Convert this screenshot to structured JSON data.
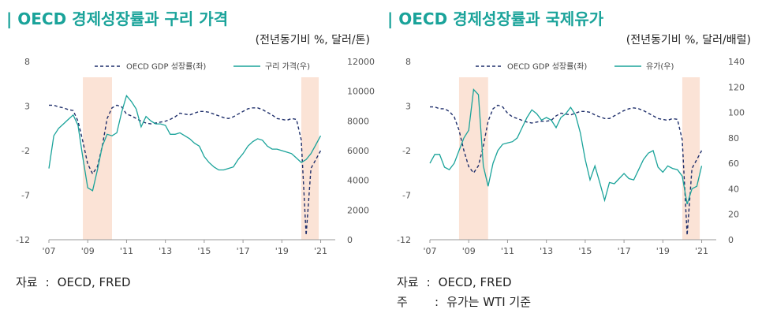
{
  "charts": [
    {
      "title": "| OECD 경제성장률과 구리 가격",
      "unit": "(전년동기비 %, 달러/톤)",
      "notes": [
        {
          "label": "자료",
          "text": "OECD, FRED"
        }
      ]
    },
    {
      "title": "| OECD 경제성장률과 국제유가",
      "unit": "(전년동기비 %, 달러/배럴)",
      "notes": [
        {
          "label": "자료",
          "text": "OECD, FRED"
        },
        {
          "label": "주",
          "text": "유가는 WTI 기준"
        }
      ]
    }
  ],
  "chart_data": [
    {
      "type": "line",
      "x_range": [
        2007,
        2021.75
      ],
      "x_ticks": [
        "'07",
        "'09",
        "'11",
        "'13",
        "'15",
        "'17",
        "'19",
        "'21"
      ],
      "y_left": {
        "range": [
          -12,
          8
        ],
        "ticks": [
          8,
          3,
          -2,
          -7,
          -12
        ]
      },
      "y_right": {
        "range": [
          0,
          12000
        ],
        "ticks": [
          12000,
          10000,
          8000,
          6000,
          4000,
          2000,
          0
        ]
      },
      "shaded_periods": [
        [
          2008.75,
          2010.25
        ],
        [
          2020.0,
          2020.9
        ]
      ],
      "series": [
        {
          "name": "OECD GDP 성장률(좌)",
          "axis": "left",
          "style": "dashed",
          "color": "#1f2f6b",
          "points": [
            [
              2007.0,
              3.1
            ],
            [
              2007.25,
              3.1
            ],
            [
              2007.5,
              2.9
            ],
            [
              2007.75,
              2.8
            ],
            [
              2008.0,
              2.6
            ],
            [
              2008.25,
              2.5
            ],
            [
              2008.5,
              1.3
            ],
            [
              2008.75,
              -1.0
            ],
            [
              2009.0,
              -3.5
            ],
            [
              2009.25,
              -4.6
            ],
            [
              2009.5,
              -3.8
            ],
            [
              2009.75,
              -1.5
            ],
            [
              2010.0,
              1.6
            ],
            [
              2010.25,
              2.8
            ],
            [
              2010.5,
              3.1
            ],
            [
              2010.75,
              2.9
            ],
            [
              2011.0,
              2.1
            ],
            [
              2011.25,
              1.9
            ],
            [
              2011.5,
              1.6
            ],
            [
              2011.75,
              1.3
            ],
            [
              2012.0,
              1.1
            ],
            [
              2012.25,
              1.0
            ],
            [
              2012.5,
              1.1
            ],
            [
              2012.75,
              1.2
            ],
            [
              2013.0,
              1.3
            ],
            [
              2013.25,
              1.5
            ],
            [
              2013.5,
              1.8
            ],
            [
              2013.75,
              2.2
            ],
            [
              2014.0,
              2.1
            ],
            [
              2014.25,
              2.0
            ],
            [
              2014.5,
              2.2
            ],
            [
              2014.75,
              2.4
            ],
            [
              2015.0,
              2.4
            ],
            [
              2015.25,
              2.3
            ],
            [
              2015.5,
              2.1
            ],
            [
              2015.75,
              1.9
            ],
            [
              2016.0,
              1.7
            ],
            [
              2016.25,
              1.6
            ],
            [
              2016.5,
              1.8
            ],
            [
              2016.75,
              2.1
            ],
            [
              2017.0,
              2.4
            ],
            [
              2017.25,
              2.7
            ],
            [
              2017.5,
              2.8
            ],
            [
              2017.75,
              2.8
            ],
            [
              2018.0,
              2.6
            ],
            [
              2018.25,
              2.3
            ],
            [
              2018.5,
              2.0
            ],
            [
              2018.75,
              1.6
            ],
            [
              2019.0,
              1.5
            ],
            [
              2019.25,
              1.4
            ],
            [
              2019.5,
              1.6
            ],
            [
              2019.75,
              1.5
            ],
            [
              2020.0,
              -0.8
            ],
            [
              2020.25,
              -11.5
            ],
            [
              2020.5,
              -4.0
            ],
            [
              2020.75,
              -3.0
            ],
            [
              2021.0,
              -2.0
            ]
          ]
        },
        {
          "name": "구리 가격(우)",
          "axis": "right",
          "style": "solid",
          "color": "#1aa39a",
          "points": [
            [
              2007.0,
              4800
            ],
            [
              2007.25,
              7000
            ],
            [
              2007.5,
              7500
            ],
            [
              2007.75,
              7800
            ],
            [
              2008.0,
              8100
            ],
            [
              2008.25,
              8400
            ],
            [
              2008.5,
              7700
            ],
            [
              2008.75,
              5500
            ],
            [
              2009.0,
              3500
            ],
            [
              2009.25,
              3300
            ],
            [
              2009.5,
              4700
            ],
            [
              2009.75,
              6300
            ],
            [
              2010.0,
              7100
            ],
            [
              2010.25,
              7000
            ],
            [
              2010.5,
              7200
            ],
            [
              2010.75,
              8600
            ],
            [
              2011.0,
              9700
            ],
            [
              2011.25,
              9300
            ],
            [
              2011.5,
              8800
            ],
            [
              2011.75,
              7600
            ],
            [
              2012.0,
              8300
            ],
            [
              2012.25,
              8000
            ],
            [
              2012.5,
              7800
            ],
            [
              2012.75,
              7800
            ],
            [
              2013.0,
              7700
            ],
            [
              2013.25,
              7100
            ],
            [
              2013.5,
              7100
            ],
            [
              2013.75,
              7200
            ],
            [
              2014.0,
              7000
            ],
            [
              2014.25,
              6800
            ],
            [
              2014.5,
              6500
            ],
            [
              2014.75,
              6300
            ],
            [
              2015.0,
              5600
            ],
            [
              2015.25,
              5200
            ],
            [
              2015.5,
              4900
            ],
            [
              2015.75,
              4700
            ],
            [
              2016.0,
              4700
            ],
            [
              2016.25,
              4800
            ],
            [
              2016.5,
              4900
            ],
            [
              2016.75,
              5400
            ],
            [
              2017.0,
              5800
            ],
            [
              2017.25,
              6300
            ],
            [
              2017.5,
              6600
            ],
            [
              2017.75,
              6800
            ],
            [
              2018.0,
              6700
            ],
            [
              2018.25,
              6300
            ],
            [
              2018.5,
              6100
            ],
            [
              2018.75,
              6100
            ],
            [
              2019.0,
              6000
            ],
            [
              2019.25,
              5900
            ],
            [
              2019.5,
              5800
            ],
            [
              2019.75,
              5500
            ],
            [
              2020.0,
              5200
            ],
            [
              2020.25,
              5400
            ],
            [
              2020.5,
              5800
            ],
            [
              2020.75,
              6400
            ],
            [
              2021.0,
              7000
            ]
          ]
        }
      ]
    },
    {
      "type": "line",
      "x_range": [
        2007,
        2021.75
      ],
      "x_ticks": [
        "'07",
        "'09",
        "'11",
        "'13",
        "'15",
        "'17",
        "'19",
        "'21"
      ],
      "y_left": {
        "range": [
          -12,
          8
        ],
        "ticks": [
          8,
          3,
          -2,
          -7,
          -12
        ]
      },
      "y_right": {
        "range": [
          0,
          140
        ],
        "ticks": [
          140,
          120,
          100,
          80,
          60,
          40,
          20,
          0
        ]
      },
      "shaded_periods": [
        [
          2008.5,
          2010.0
        ],
        [
          2020.0,
          2020.9
        ]
      ],
      "series": [
        {
          "name": "OECD GDP 성장률(좌)",
          "axis": "left",
          "style": "dashed",
          "color": "#1f2f6b",
          "points": [
            [
              2007.0,
              2.9
            ],
            [
              2007.25,
              2.9
            ],
            [
              2007.5,
              2.7
            ],
            [
              2007.75,
              2.7
            ],
            [
              2008.0,
              2.4
            ],
            [
              2008.25,
              1.8
            ],
            [
              2008.5,
              0.3
            ],
            [
              2008.75,
              -2.0
            ],
            [
              2009.0,
              -3.8
            ],
            [
              2009.25,
              -4.5
            ],
            [
              2009.5,
              -3.7
            ],
            [
              2009.75,
              -1.5
            ],
            [
              2010.0,
              1.3
            ],
            [
              2010.25,
              2.7
            ],
            [
              2010.5,
              3.1
            ],
            [
              2010.75,
              2.9
            ],
            [
              2011.0,
              2.2
            ],
            [
              2011.25,
              1.8
            ],
            [
              2011.5,
              1.6
            ],
            [
              2011.75,
              1.4
            ],
            [
              2012.0,
              1.2
            ],
            [
              2012.25,
              1.1
            ],
            [
              2012.5,
              1.2
            ],
            [
              2012.75,
              1.3
            ],
            [
              2013.0,
              1.3
            ],
            [
              2013.25,
              1.4
            ],
            [
              2013.5,
              1.9
            ],
            [
              2013.75,
              2.2
            ],
            [
              2014.0,
              2.1
            ],
            [
              2014.25,
              2.0
            ],
            [
              2014.5,
              2.2
            ],
            [
              2014.75,
              2.4
            ],
            [
              2015.0,
              2.4
            ],
            [
              2015.25,
              2.3
            ],
            [
              2015.5,
              2.0
            ],
            [
              2015.75,
              1.8
            ],
            [
              2016.0,
              1.6
            ],
            [
              2016.25,
              1.6
            ],
            [
              2016.5,
              1.9
            ],
            [
              2016.75,
              2.2
            ],
            [
              2017.0,
              2.5
            ],
            [
              2017.25,
              2.7
            ],
            [
              2017.5,
              2.8
            ],
            [
              2017.75,
              2.7
            ],
            [
              2018.0,
              2.5
            ],
            [
              2018.25,
              2.2
            ],
            [
              2018.5,
              1.9
            ],
            [
              2018.75,
              1.6
            ],
            [
              2019.0,
              1.5
            ],
            [
              2019.25,
              1.4
            ],
            [
              2019.5,
              1.6
            ],
            [
              2019.75,
              1.5
            ],
            [
              2020.0,
              -0.8
            ],
            [
              2020.25,
              -11.5
            ],
            [
              2020.5,
              -4.0
            ],
            [
              2020.75,
              -3.0
            ],
            [
              2021.0,
              -2.0
            ]
          ]
        },
        {
          "name": "유가(우)",
          "axis": "right",
          "style": "solid",
          "color": "#1aa39a",
          "points": [
            [
              2007.0,
              60
            ],
            [
              2007.25,
              67
            ],
            [
              2007.5,
              67
            ],
            [
              2007.75,
              57
            ],
            [
              2008.0,
              55
            ],
            [
              2008.25,
              60
            ],
            [
              2008.5,
              70
            ],
            [
              2008.75,
              80
            ],
            [
              2009.0,
              86
            ],
            [
              2009.25,
              118
            ],
            [
              2009.5,
              114
            ],
            [
              2009.75,
              58
            ],
            [
              2010.0,
              42
            ],
            [
              2010.25,
              60
            ],
            [
              2010.5,
              70
            ],
            [
              2010.75,
              75
            ],
            [
              2011.0,
              76
            ],
            [
              2011.25,
              77
            ],
            [
              2011.5,
              80
            ],
            [
              2011.75,
              88
            ],
            [
              2012.0,
              96
            ],
            [
              2012.25,
              102
            ],
            [
              2012.5,
              99
            ],
            [
              2012.75,
              94
            ],
            [
              2013.0,
              96
            ],
            [
              2013.25,
              94
            ],
            [
              2013.5,
              88
            ],
            [
              2013.75,
              96
            ],
            [
              2014.0,
              99
            ],
            [
              2014.25,
              104
            ],
            [
              2014.5,
              98
            ],
            [
              2014.75,
              84
            ],
            [
              2015.0,
              63
            ],
            [
              2015.25,
              47
            ],
            [
              2015.5,
              58
            ],
            [
              2015.75,
              45
            ],
            [
              2016.0,
              31
            ],
            [
              2016.25,
              45
            ],
            [
              2016.5,
              44
            ],
            [
              2016.75,
              48
            ],
            [
              2017.0,
              52
            ],
            [
              2017.25,
              48
            ],
            [
              2017.5,
              47
            ],
            [
              2017.75,
              55
            ],
            [
              2018.0,
              63
            ],
            [
              2018.25,
              68
            ],
            [
              2018.5,
              70
            ],
            [
              2018.75,
              57
            ],
            [
              2019.0,
              53
            ],
            [
              2019.25,
              58
            ],
            [
              2019.5,
              56
            ],
            [
              2019.75,
              55
            ],
            [
              2020.0,
              50
            ],
            [
              2020.25,
              28
            ],
            [
              2020.5,
              40
            ],
            [
              2020.75,
              42
            ],
            [
              2021.0,
              58
            ]
          ]
        }
      ]
    }
  ]
}
